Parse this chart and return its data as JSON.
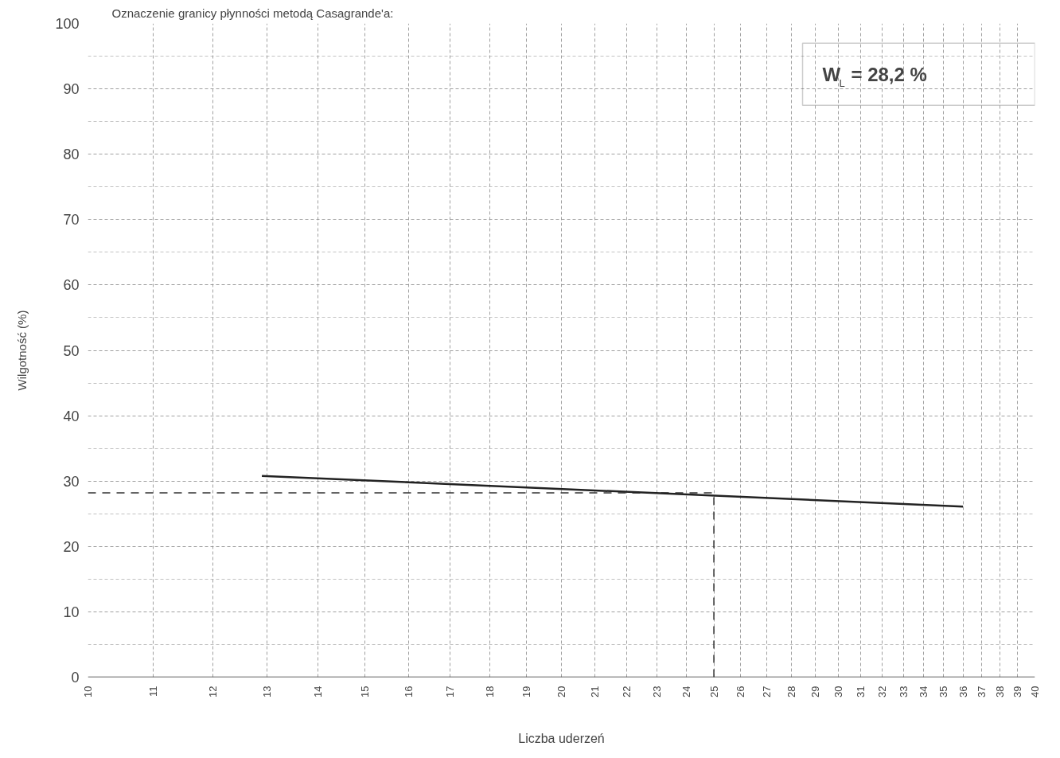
{
  "chart_data": {
    "type": "line",
    "title": "Oznaczenie granicy płynności metodą Casagrande'a:",
    "xlabel": "Liczba uderzeń",
    "ylabel": "Wilgotność (%)",
    "x": [
      12.9,
      36
    ],
    "series": [
      {
        "color": "#222222",
        "values": [
          30.8,
          26.1
        ]
      }
    ],
    "log": "x",
    "xlim": [
      10,
      40
    ],
    "xticks": [
      10,
      11,
      12,
      13,
      14,
      15,
      16,
      17,
      18,
      19,
      20,
      21,
      22,
      23,
      24,
      25,
      26,
      27,
      28,
      29,
      30,
      31,
      32,
      33,
      34,
      35,
      36,
      37,
      38,
      39,
      40
    ],
    "ylim": [
      0,
      100
    ],
    "yticks": [
      0,
      10,
      20,
      30,
      40,
      50,
      60,
      70,
      80,
      90,
      100
    ],
    "grid": true,
    "marker": "none",
    "line_style": "solid",
    "ref_lines": [
      {
        "axis": "y",
        "value": 28.2,
        "line_style": "dashed",
        "color": "#333333"
      },
      {
        "axis": "x",
        "value": 25,
        "line_style": "dashed",
        "color": "#333333"
      }
    ],
    "annotations": [
      "W$_{L}$ = 28,2 %"
    ]
  }
}
